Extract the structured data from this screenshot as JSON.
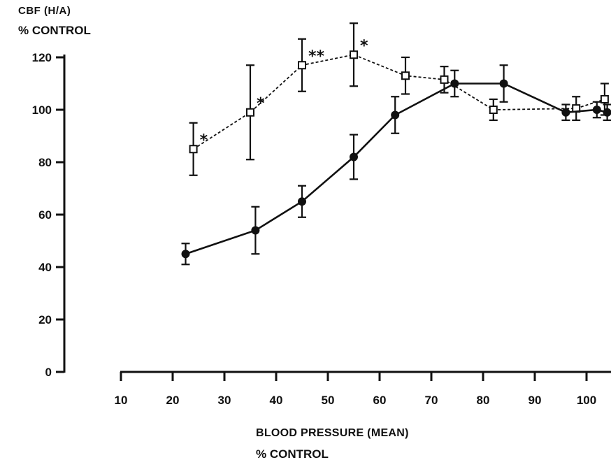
{
  "chart_data": {
    "type": "line",
    "ylabel_line1": "CBF (H/A)",
    "ylabel_line2": "% CONTROL",
    "xlabel_line1": "BLOOD PRESSURE (MEAN)",
    "xlabel_line2": "% CONTROL",
    "xlim": [
      10,
      104
    ],
    "ylim": [
      0,
      120
    ],
    "x_ticks": [
      10,
      20,
      30,
      40,
      50,
      60,
      70,
      80,
      90,
      100
    ],
    "y_ticks": [
      0,
      20,
      40,
      60,
      80,
      100,
      120
    ],
    "series": [
      {
        "marker": "open-square",
        "line_style": "dashed",
        "points": [
          {
            "x": 24,
            "y": 85,
            "err": 10,
            "annotation": "*"
          },
          {
            "x": 35,
            "y": 99,
            "err": 18,
            "annotation": "*"
          },
          {
            "x": 45,
            "y": 117,
            "err": 10,
            "annotation": "**"
          },
          {
            "x": 55,
            "y": 121,
            "err": 12,
            "annotation": "*"
          },
          {
            "x": 65,
            "y": 113,
            "err": 7,
            "annotation": ""
          },
          {
            "x": 72.5,
            "y": 111.5,
            "err": 5,
            "annotation": ""
          },
          {
            "x": 82,
            "y": 100,
            "err": 4,
            "annotation": ""
          },
          {
            "x": 98,
            "y": 100.5,
            "err": 4.5,
            "annotation": ""
          },
          {
            "x": 103.5,
            "y": 104,
            "err": 6,
            "annotation": ""
          }
        ]
      },
      {
        "marker": "filled-circle",
        "line_style": "solid",
        "points": [
          {
            "x": 22.5,
            "y": 45,
            "err": 4
          },
          {
            "x": 36,
            "y": 54,
            "err": 9
          },
          {
            "x": 45,
            "y": 65,
            "err": 6
          },
          {
            "x": 55,
            "y": 82,
            "err": 8.5
          },
          {
            "x": 63,
            "y": 98,
            "err": 7
          },
          {
            "x": 74.5,
            "y": 110,
            "err": 5
          },
          {
            "x": 84,
            "y": 110,
            "err": 7
          },
          {
            "x": 96,
            "y": 99,
            "err": 3
          },
          {
            "x": 102,
            "y": 100,
            "err": 3
          },
          {
            "x": 104,
            "y": 99,
            "err": 3
          }
        ]
      }
    ]
  }
}
